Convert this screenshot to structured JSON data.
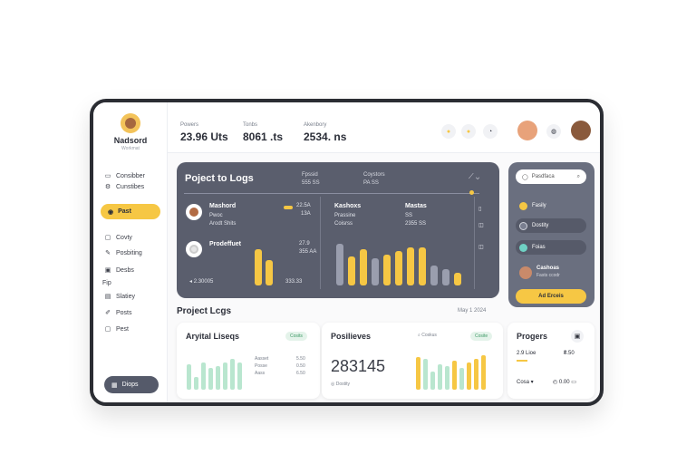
{
  "profile": {
    "name": "Nadsord",
    "subtitle": "Workmat"
  },
  "sidebar": {
    "items": [
      {
        "label": "Consibber",
        "icon": "folder-icon"
      },
      {
        "label": "Cunstibes",
        "icon": "settings-icon"
      }
    ],
    "active": {
      "label": "Past",
      "icon": "bolt-icon"
    },
    "items2": [
      {
        "label": "Covty",
        "icon": "document-icon"
      },
      {
        "label": "Posbiting",
        "icon": "edit-icon"
      },
      {
        "label": "Desbs",
        "icon": "box-icon"
      },
      {
        "label": "Fip",
        "icon": ""
      },
      {
        "label": "Slatiey",
        "icon": "calendar-icon"
      },
      {
        "label": "Posts",
        "icon": "pen-icon"
      },
      {
        "label": "Pest",
        "icon": "chat-icon"
      }
    ],
    "bottom": {
      "label": "Diops",
      "icon": "grid-icon"
    }
  },
  "topbar": {
    "stats": [
      {
        "label": "Powers",
        "value": "23.96 Uts"
      },
      {
        "label": "Tonbs",
        "value": "8061 .ts"
      },
      {
        "label": "Akenbory",
        "value": "2534. ns"
      }
    ]
  },
  "big": {
    "title": "Poject to Logs",
    "hdr1": {
      "a": "Fpssid",
      "b": "555 SS"
    },
    "hdr2": {
      "a": "Coystors",
      "b": "PA SS"
    },
    "rows": [
      {
        "name": "Mashord",
        "l1": "Pwoc",
        "l2": "Arodt Shits",
        "v1": "22.5A",
        "v2": "13A"
      },
      {
        "name": "Prodeffuet",
        "l1": "",
        "l2": "",
        "v1": "27.9",
        "v2": "355 AA"
      }
    ],
    "mid": {
      "name": "Kashoxs",
      "l1": "Prassine",
      "l2": "Coisrss",
      "v1": "Mastas",
      "v2": "SS",
      "v3": "2355 SS"
    },
    "footer_left": "2.30005",
    "footer_right": "333.33"
  },
  "right_panel": {
    "search": "Pasdfaca",
    "items": [
      {
        "label": "Fasily",
        "color": "#f6c744"
      },
      {
        "label": "Dostity",
        "color": "#7a7f90"
      },
      {
        "label": "Foias",
        "color": "#6fd1c4"
      }
    ],
    "person": {
      "name": "Cashoas",
      "sub": "Fasts ccodr"
    },
    "button": "Ad Erceis"
  },
  "sub": {
    "title": "Project Lcgs",
    "right": "May 1 2024"
  },
  "cards": [
    {
      "title": "Aryital Liseqs",
      "tag": "Cosits",
      "rows": [
        {
          "l": "Aasset",
          "v": "5.50"
        },
        {
          "l": "Posse",
          "v": "0.50"
        },
        {
          "l": "Aass",
          "v": "6.50"
        }
      ]
    },
    {
      "title": "Posilieves",
      "tag": "Cosite",
      "search": "Coskus",
      "value": "283145",
      "sub": "Dostity"
    },
    {
      "title": "Progers",
      "l1": "2.9 Lioe",
      "v1": "₴.50",
      "l2": "Cosa",
      "v2": "0.00"
    }
  ]
}
